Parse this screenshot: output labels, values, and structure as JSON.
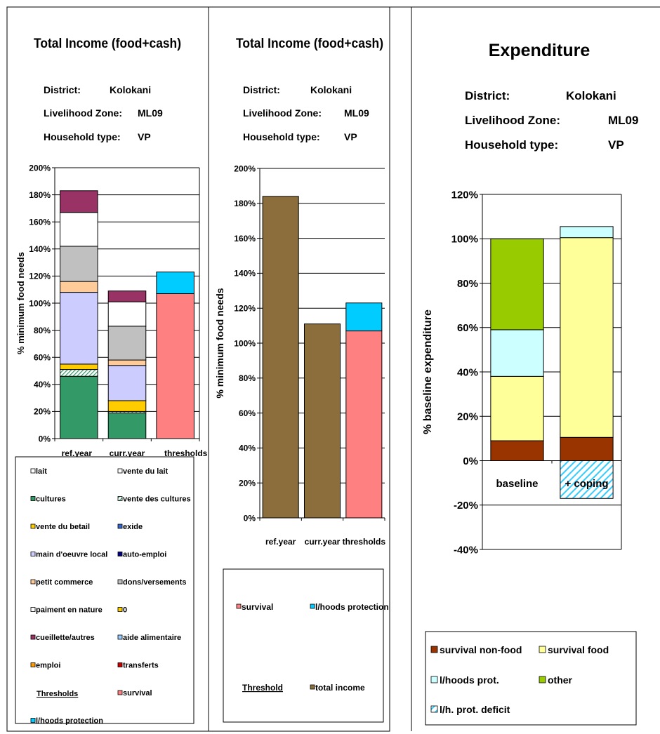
{
  "colors": {
    "cultures_dark": "#339966",
    "cultures_sales": "#339966",
    "vente_betail": "#FFCC00",
    "main_oeuvre": "#CCCCFF",
    "petit_commerce": "#FFCC99",
    "dons": "#C0C0C0",
    "paiment_nature": "#FFFFFF",
    "cueillette": "#993366",
    "survival": "#FF8080",
    "lhoods": "#00CCFF",
    "total_income": "#8C6E3C",
    "exp_nonfood": "#993300",
    "exp_food": "#FFFF99",
    "exp_lhoods": "#CCFFFF",
    "exp_other": "#99CC00",
    "exp_deficit": "#33CCFF"
  },
  "panels": [
    {
      "title": "Total Income (food+cash)",
      "meta": [
        {
          "label": "District:",
          "value": "Kolokani"
        },
        {
          "label": "Livelihood Zone:",
          "value": "ML09"
        },
        {
          "label": "Household type:",
          "value": "VP"
        }
      ]
    },
    {
      "title": "Total Income (food+cash)",
      "meta": [
        {
          "label": "District:",
          "value": "Kolokani"
        },
        {
          "label": "Livelihood Zone:",
          "value": "ML09"
        },
        {
          "label": "Household type:",
          "value": "VP"
        }
      ]
    },
    {
      "title": "Expenditure",
      "meta": [
        {
          "label": "District:",
          "value": "Kolokani"
        },
        {
          "label": "Livelihood Zone:",
          "value": "ML09"
        },
        {
          "label": "Household type:",
          "value": "VP"
        }
      ]
    }
  ],
  "chart_data": [
    {
      "type": "bar",
      "stacked": true,
      "ylabel": "% minimum food needs",
      "ylim": [
        0,
        200
      ],
      "yticks": [
        "0%",
        "20%",
        "40%",
        "60%",
        "80%",
        "100%",
        "120%",
        "140%",
        "160%",
        "180%",
        "200%"
      ],
      "categories": [
        "ref.year",
        "curr.year",
        "thresholds"
      ],
      "series": [
        {
          "name": "cultures",
          "color": "#339966",
          "values": [
            46,
            19,
            0
          ]
        },
        {
          "name": "vente des cultures",
          "color": "#339966",
          "pattern": "hatch",
          "values": [
            5,
            1,
            0
          ]
        },
        {
          "name": "vente du betail",
          "color": "#FFCC00",
          "values": [
            4,
            8,
            0
          ]
        },
        {
          "name": "main d'oeuvre local",
          "color": "#CCCCFF",
          "values": [
            53,
            26,
            0
          ]
        },
        {
          "name": "petit commerce",
          "color": "#FFCC99",
          "values": [
            8,
            4,
            0
          ]
        },
        {
          "name": "dons/versements",
          "color": "#C0C0C0",
          "values": [
            26,
            25,
            0
          ]
        },
        {
          "name": "paiment en nature",
          "color": "#FFFFFF",
          "values": [
            25,
            18,
            0
          ]
        },
        {
          "name": "cueillette/autres",
          "color": "#993366",
          "values": [
            16,
            8,
            0
          ]
        },
        {
          "name": "survival",
          "color": "#FF8080",
          "values": [
            0,
            0,
            107
          ]
        },
        {
          "name": "l/hoods protection",
          "color": "#00CCFF",
          "values": [
            0,
            0,
            16
          ]
        }
      ],
      "legend": [
        {
          "label": "lait",
          "color": "#FFFFFF"
        },
        {
          "label": "vente du lait",
          "color": "#FFFFFF"
        },
        {
          "label": "cultures",
          "color": "#339966"
        },
        {
          "label": "vente des cultures",
          "color": "#339966",
          "pattern": "hatch"
        },
        {
          "label": "vente du betail",
          "color": "#FFCC00"
        },
        {
          "label": "exide",
          "color": "#3366CC"
        },
        {
          "label": "main d'oeuvre local",
          "color": "#CCCCFF"
        },
        {
          "label": "auto-emploi",
          "color": "#000080"
        },
        {
          "label": "petit commerce",
          "color": "#FFCC99"
        },
        {
          "label": "dons/versements",
          "color": "#C0C0C0"
        },
        {
          "label": "paiment en nature",
          "color": "#FFFFFF"
        },
        {
          "label": "0",
          "color": "#FFCC00"
        },
        {
          "label": "cueillette/autres",
          "color": "#993366"
        },
        {
          "label": "aide alimentaire",
          "color": "#99CCFF"
        },
        {
          "label": "emploi",
          "color": "#FF9900"
        },
        {
          "label": "transferts",
          "color": "#CC0000"
        },
        {
          "label": "Thresholds",
          "color": "",
          "underline": true
        },
        {
          "label": "survival",
          "color": "#FF8080"
        },
        {
          "label": "l/hoods protection",
          "color": "#00CCFF"
        }
      ]
    },
    {
      "type": "bar",
      "stacked": true,
      "ylabel": "% minimum food needs",
      "ylim": [
        0,
        200
      ],
      "yticks": [
        "0%",
        "20%",
        "40%",
        "60%",
        "80%",
        "100%",
        "120%",
        "140%",
        "160%",
        "180%",
        "200%"
      ],
      "categories": [
        "ref.year",
        "curr.year",
        "thresholds"
      ],
      "series": [
        {
          "name": "total income",
          "color": "#8C6E3C",
          "values": [
            184,
            111,
            0
          ]
        },
        {
          "name": "survival",
          "color": "#FF8080",
          "values": [
            0,
            0,
            107
          ]
        },
        {
          "name": "l/hoods protection",
          "color": "#00CCFF",
          "values": [
            0,
            0,
            16
          ]
        }
      ],
      "legend": [
        {
          "label": "survival",
          "color": "#FF8080"
        },
        {
          "label": "l/hoods protection",
          "color": "#00CCFF"
        },
        {
          "label": "Threshold",
          "color": "",
          "underline": true
        },
        {
          "label": "total income",
          "color": "#8C6E3C"
        }
      ]
    },
    {
      "type": "bar",
      "stacked": true,
      "ylabel": "% baseline expenditure",
      "ylim": [
        -40,
        120
      ],
      "yticks": [
        "-40%",
        "-20%",
        "0%",
        "20%",
        "40%",
        "60%",
        "80%",
        "100%",
        "120%"
      ],
      "categories": [
        "baseline",
        "+ coping"
      ],
      "series": [
        {
          "name": "survival non-food",
          "color": "#993300",
          "values": [
            9,
            10.5
          ]
        },
        {
          "name": "survival food",
          "color": "#FFFF99",
          "values": [
            29,
            90
          ]
        },
        {
          "name": "l/hoods prot.",
          "color": "#CCFFFF",
          "values": [
            21,
            5
          ]
        },
        {
          "name": "other",
          "color": "#99CC00",
          "values": [
            41,
            0
          ]
        },
        {
          "name": "l/h. prot. deficit",
          "color": "#33CCFF",
          "pattern": "hatch",
          "values": [
            0,
            -17
          ]
        }
      ],
      "legend": [
        {
          "label": "survival non-food",
          "color": "#993300"
        },
        {
          "label": "survival food",
          "color": "#FFFF99"
        },
        {
          "label": "l/hoods prot.",
          "color": "#CCFFFF"
        },
        {
          "label": "other",
          "color": "#99CC00"
        },
        {
          "label": "l/h. prot. deficit",
          "color": "#33CCFF",
          "pattern": "hatch"
        }
      ]
    }
  ]
}
